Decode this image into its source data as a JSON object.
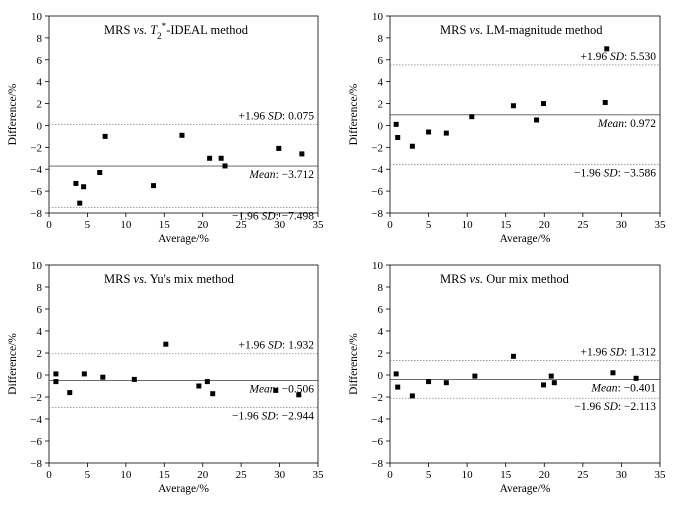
{
  "chart_data": [
    {
      "type": "scatter",
      "title_parts": [
        "MRS ",
        "vs.",
        " ",
        "T",
        "2",
        "*",
        "-IDEAL method"
      ],
      "title_style": [
        "n",
        "i",
        "n",
        "i",
        "sub",
        "sup",
        "n"
      ],
      "xlabel": "Average/%",
      "ylabel": "Difference/%",
      "xlim": [
        0,
        35
      ],
      "ylim": [
        -8,
        10
      ],
      "xticks": [
        "0",
        "5",
        "10",
        "15",
        "20",
        "25",
        "30",
        "35"
      ],
      "yticks": [
        "−8",
        "−6",
        "−4",
        "−2",
        "0",
        "2",
        "4",
        "6",
        "8",
        "10"
      ],
      "points": [
        [
          3.5,
          -5.3
        ],
        [
          4.0,
          -7.1
        ],
        [
          4.5,
          -5.6
        ],
        [
          6.6,
          -4.3
        ],
        [
          7.3,
          -1.0
        ],
        [
          13.6,
          -5.5
        ],
        [
          17.3,
          -0.9
        ],
        [
          20.9,
          -3.0
        ],
        [
          22.4,
          -3.0
        ],
        [
          22.9,
          -3.7
        ],
        [
          29.9,
          -2.1
        ],
        [
          32.9,
          -2.6
        ]
      ],
      "mean": -3.712,
      "upper_loa": 0.075,
      "lower_loa": -7.498,
      "upper_label": [
        "+1.96 ",
        "SD",
        ": 0.075"
      ],
      "mean_label": [
        "Mean",
        ": −3.712"
      ],
      "lower_label": [
        "−1.96 ",
        "SD",
        ": −7.498"
      ]
    },
    {
      "type": "scatter",
      "title_parts": [
        "MRS ",
        "vs.",
        " LM-magnitude method"
      ],
      "title_style": [
        "n",
        "i",
        "n"
      ],
      "xlabel": "Average/%",
      "ylabel": "Difference/%",
      "xlim": [
        0,
        35
      ],
      "ylim": [
        -8,
        10
      ],
      "xticks": [
        "0",
        "5",
        "10",
        "15",
        "20",
        "25",
        "30",
        "35"
      ],
      "yticks": [
        "−8",
        "−6",
        "−4",
        "−2",
        "0",
        "2",
        "4",
        "6",
        "8",
        "10"
      ],
      "points": [
        [
          0.8,
          0.1
        ],
        [
          1.0,
          -1.1
        ],
        [
          2.9,
          -1.9
        ],
        [
          5.0,
          -0.6
        ],
        [
          7.3,
          -0.7
        ],
        [
          10.6,
          0.8
        ],
        [
          16.0,
          1.8
        ],
        [
          19.0,
          0.5
        ],
        [
          19.9,
          2.0
        ],
        [
          28.1,
          7.0
        ],
        [
          27.9,
          2.1
        ]
      ],
      "mean": 0.972,
      "upper_loa": 5.53,
      "lower_loa": -3.586,
      "upper_label": [
        "+1.96 ",
        "SD",
        ": 5.530"
      ],
      "mean_label": [
        "Mean",
        ": 0.972"
      ],
      "lower_label": [
        "−1.96 ",
        "SD",
        ": −3.586"
      ]
    },
    {
      "type": "scatter",
      "title_parts": [
        "MRS ",
        "vs.",
        " Yu's mix method"
      ],
      "title_style": [
        "n",
        "i",
        "n"
      ],
      "xlabel": "Average/%",
      "ylabel": "Difference/%",
      "xlim": [
        0,
        35
      ],
      "ylim": [
        -8,
        10
      ],
      "xticks": [
        "0",
        "5",
        "10",
        "15",
        "20",
        "25",
        "30",
        "35"
      ],
      "yticks": [
        "−8",
        "−6",
        "−4",
        "−2",
        "0",
        "2",
        "4",
        "6",
        "8",
        "10"
      ],
      "points": [
        [
          0.9,
          0.1
        ],
        [
          0.9,
          -0.6
        ],
        [
          2.7,
          -1.6
        ],
        [
          4.6,
          0.1
        ],
        [
          7.0,
          -0.2
        ],
        [
          11.1,
          -0.4
        ],
        [
          15.2,
          2.8
        ],
        [
          19.5,
          -1.0
        ],
        [
          20.6,
          -0.6
        ],
        [
          21.3,
          -1.7
        ],
        [
          29.5,
          -1.4
        ],
        [
          32.5,
          -1.8
        ]
      ],
      "mean": -0.506,
      "upper_loa": 1.932,
      "lower_loa": -2.944,
      "upper_label": [
        "+1.96 ",
        "SD",
        ": 1.932"
      ],
      "mean_label": [
        "Mean",
        ": −0.506"
      ],
      "lower_label": [
        "−1.96 ",
        "SD",
        ": −2.944"
      ]
    },
    {
      "type": "scatter",
      "title_parts": [
        "MRS ",
        "vs.",
        " Our mix method"
      ],
      "title_style": [
        "n",
        "i",
        "n"
      ],
      "xlabel": "Average/%",
      "ylabel": "Difference/%",
      "xlim": [
        0,
        35
      ],
      "ylim": [
        -8,
        10
      ],
      "xticks": [
        "0",
        "5",
        "10",
        "15",
        "20",
        "25",
        "30",
        "35"
      ],
      "yticks": [
        "−8",
        "−6",
        "−4",
        "−2",
        "0",
        "2",
        "4",
        "6",
        "8",
        "10"
      ],
      "points": [
        [
          0.8,
          0.1
        ],
        [
          1.0,
          -1.1
        ],
        [
          2.9,
          -1.9
        ],
        [
          5.0,
          -0.6
        ],
        [
          7.3,
          -0.7
        ],
        [
          11.0,
          -0.1
        ],
        [
          16.0,
          1.7
        ],
        [
          19.9,
          -0.9
        ],
        [
          20.9,
          -0.1
        ],
        [
          21.3,
          -0.7
        ],
        [
          28.9,
          0.2
        ],
        [
          31.9,
          -0.3
        ]
      ],
      "mean": -0.401,
      "upper_loa": 1.312,
      "lower_loa": -2.113,
      "upper_label": [
        "+1.96 ",
        "SD",
        ": 1.312"
      ],
      "mean_label": [
        "Mean",
        ": −0.401"
      ],
      "lower_label": [
        "−1.96 ",
        "SD",
        ": −2.113"
      ]
    }
  ]
}
